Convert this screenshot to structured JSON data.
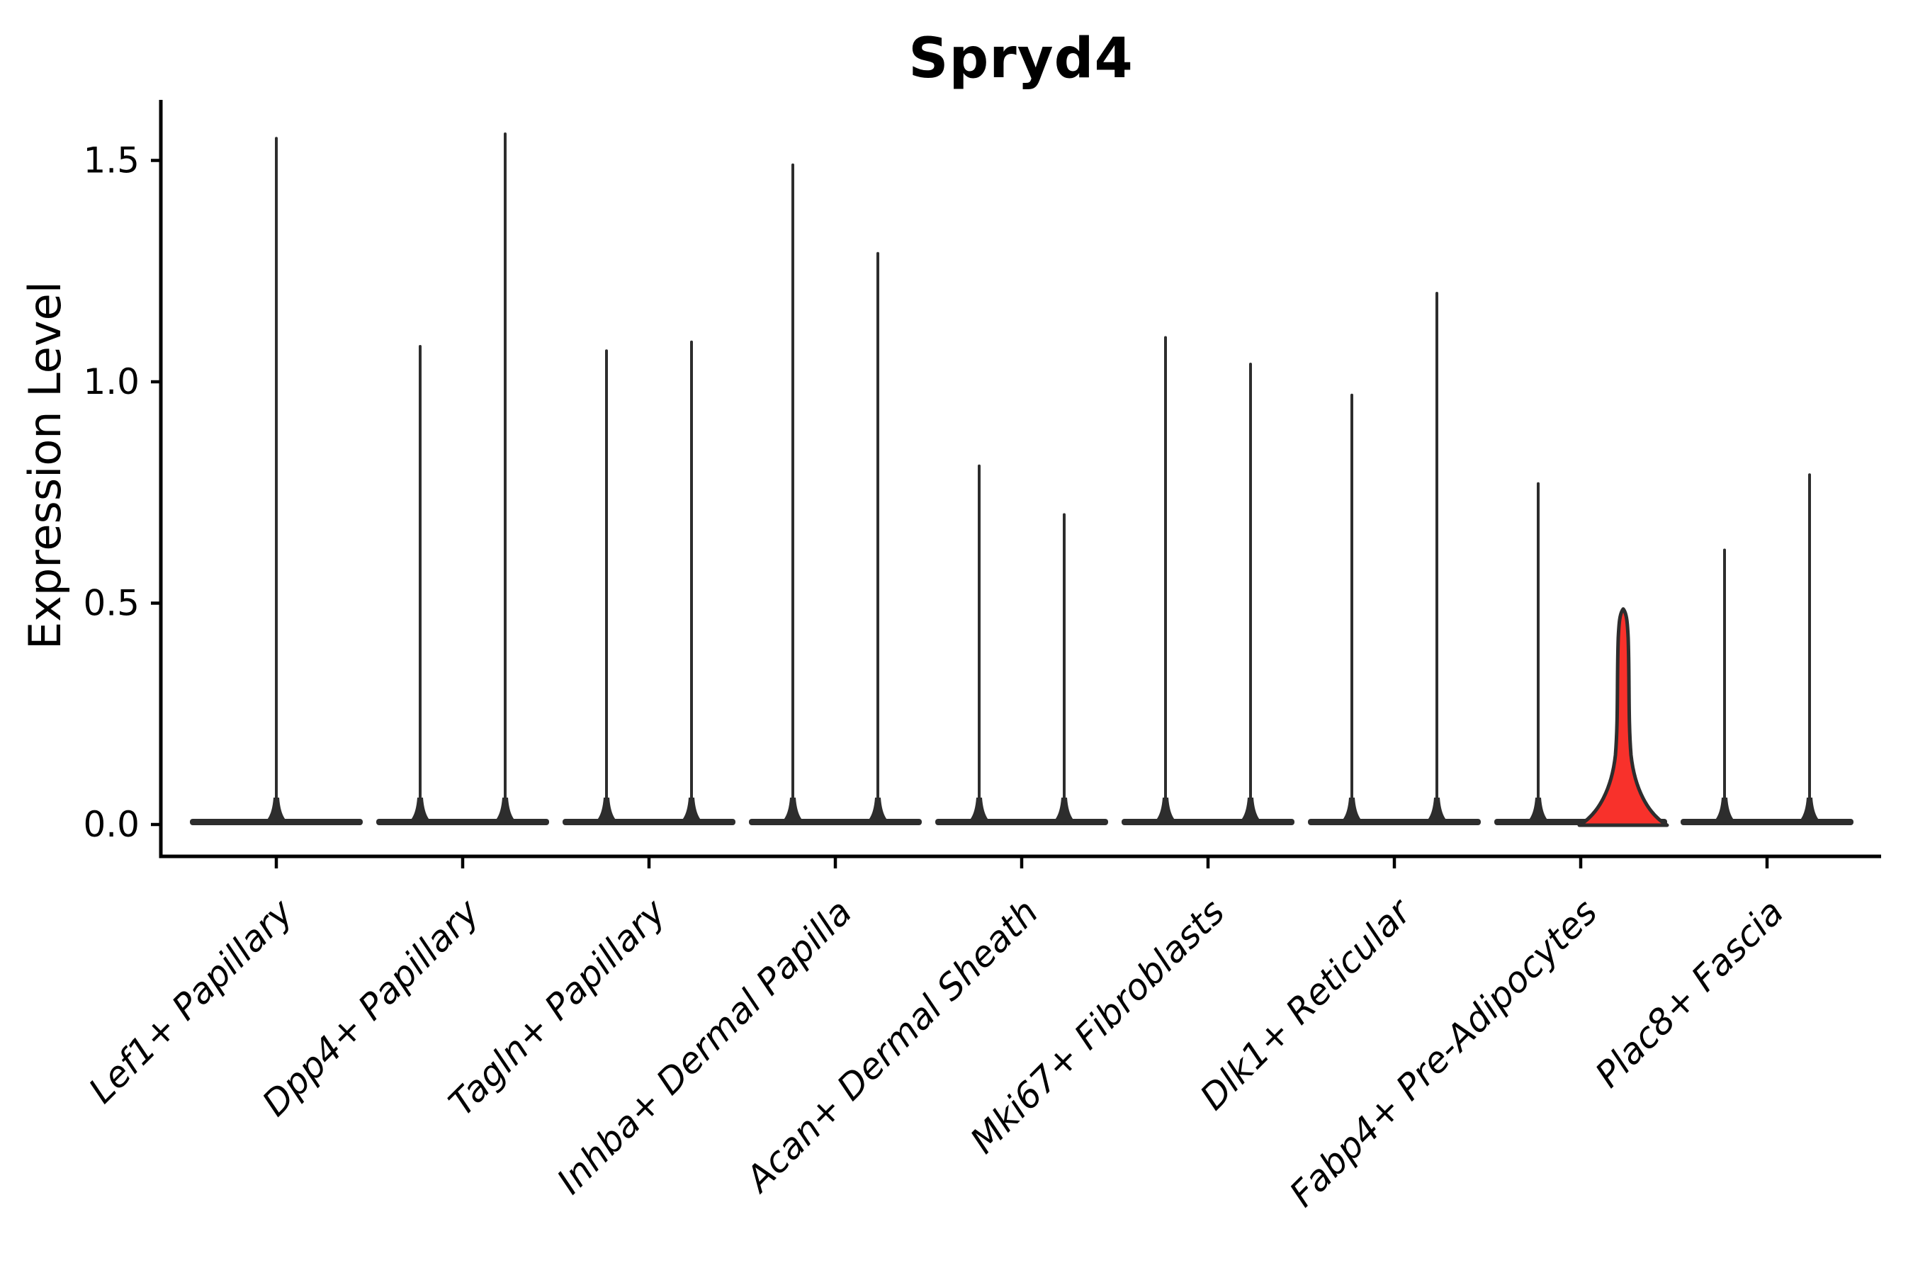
{
  "chart_data": {
    "type": "violin",
    "title": "Spryd4",
    "ylabel": "Expression Level",
    "xlabel": "",
    "yticks": [
      "0.0",
      "0.5",
      "1.0",
      "1.5"
    ],
    "ylim": [
      0,
      1.65
    ],
    "grid": false,
    "legend": null,
    "categories": [
      "Lef1+ Papillary",
      "Dpp4+ Papillary",
      "Tagln+ Papillary",
      "Inhba+ Dermal Papilla",
      "Acan+ Dermal Sheath",
      "Mki67+ Fibroblasts",
      "Dlk1+ Reticular",
      "Fabp4+ Pre-Adipocytes",
      "Plac8+ Fascia"
    ],
    "groups": [
      {
        "category": "Lef1+ Papillary",
        "violins": [
          {
            "offset": 0,
            "max_expression": 1.55,
            "highlight": false
          }
        ]
      },
      {
        "category": "Dpp4+ Papillary",
        "violins": [
          {
            "offset": -1,
            "max_expression": 1.08,
            "highlight": false
          },
          {
            "offset": 1,
            "max_expression": 1.56,
            "highlight": false
          }
        ]
      },
      {
        "category": "Tagln+ Papillary",
        "violins": [
          {
            "offset": -1,
            "max_expression": 1.07,
            "highlight": false
          },
          {
            "offset": 1,
            "max_expression": 1.09,
            "highlight": false
          }
        ]
      },
      {
        "category": "Inhba+ Dermal Papilla",
        "violins": [
          {
            "offset": -1,
            "max_expression": 1.49,
            "highlight": false
          },
          {
            "offset": 1,
            "max_expression": 1.29,
            "highlight": false
          }
        ]
      },
      {
        "category": "Acan+ Dermal Sheath",
        "violins": [
          {
            "offset": -1,
            "max_expression": 0.81,
            "highlight": false
          },
          {
            "offset": 1,
            "max_expression": 0.7,
            "highlight": false
          }
        ]
      },
      {
        "category": "Mki67+ Fibroblasts",
        "violins": [
          {
            "offset": -1,
            "max_expression": 1.1,
            "highlight": false
          },
          {
            "offset": 1,
            "max_expression": 1.04,
            "highlight": false
          }
        ]
      },
      {
        "category": "Dlk1+ Reticular",
        "violins": [
          {
            "offset": -1,
            "max_expression": 0.97,
            "highlight": false
          },
          {
            "offset": 1,
            "max_expression": 1.2,
            "highlight": false
          }
        ]
      },
      {
        "category": "Fabp4+ Pre-Adipocytes",
        "violins": [
          {
            "offset": -1,
            "max_expression": 0.77,
            "highlight": false
          },
          {
            "offset": 1,
            "max_expression": 0.49,
            "highlight": true
          }
        ]
      },
      {
        "category": "Plac8+ Fascia",
        "violins": [
          {
            "offset": -1,
            "max_expression": 0.62,
            "highlight": false
          },
          {
            "offset": 1,
            "max_expression": 0.79,
            "highlight": false
          }
        ]
      }
    ],
    "colors": {
      "highlight_fill": "#F8312B",
      "violin_line": "#2D2D2D",
      "axis": "#000000",
      "text": "#000000",
      "background": "#FFFFFF"
    }
  }
}
